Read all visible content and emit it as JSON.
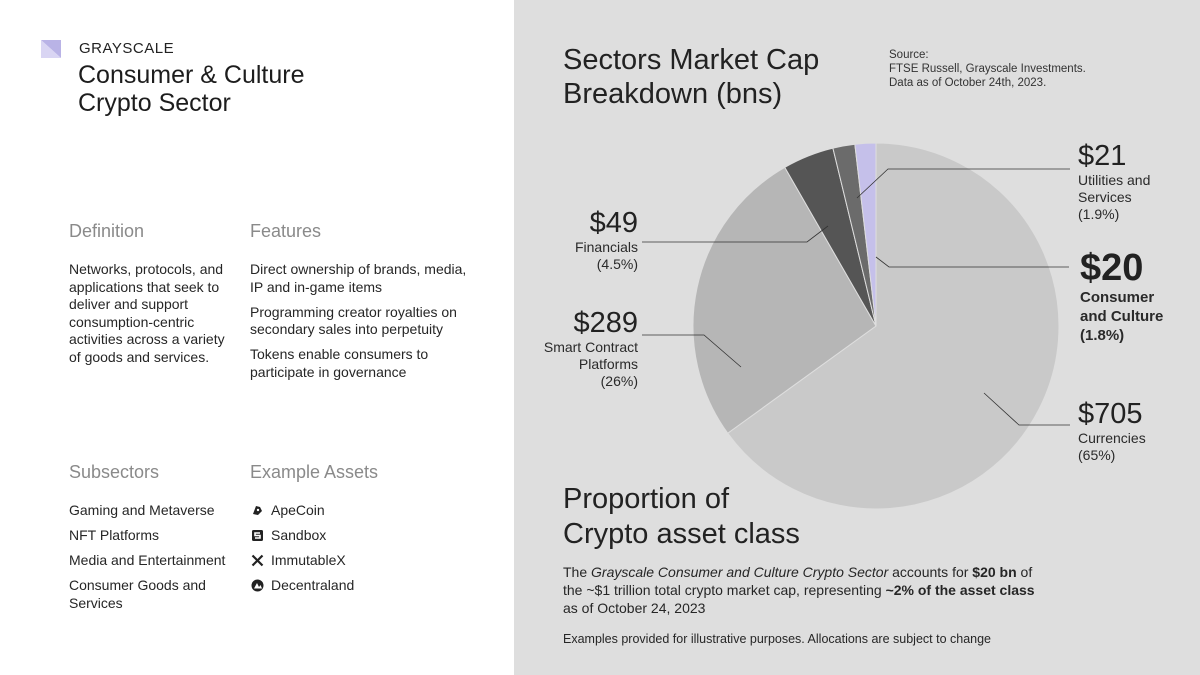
{
  "brand": {
    "name": "GRAYSCALE",
    "title_line1": "Consumer & Culture",
    "title_line2": "Crypto Sector",
    "accent_color": "#b9b3e6"
  },
  "definition": {
    "heading": "Definition",
    "text": "Networks, protocols, and applications that seek to deliver and support consumption-centric activities across a variety of goods and services."
  },
  "features": {
    "heading": "Features",
    "items": [
      "Direct ownership of brands, media, IP and in-game items",
      "Programming creator royalties on secondary sales into perpetuity",
      "Tokens enable consumers to participate in governance"
    ]
  },
  "subsectors": {
    "heading": "Subsectors",
    "items": [
      "Gaming and Metaverse",
      "NFT Platforms",
      "Media and Entertainment",
      "Consumer Goods and Services"
    ]
  },
  "example_assets": {
    "heading": "Example Assets",
    "items": [
      {
        "name": "ApeCoin",
        "icon": "apecoin-icon"
      },
      {
        "name": "Sandbox",
        "icon": "sandbox-icon"
      },
      {
        "name": "ImmutableX",
        "icon": "immutablex-icon"
      },
      {
        "name": "Decentraland",
        "icon": "decentraland-icon"
      }
    ]
  },
  "source": {
    "line1": "Source:",
    "line2": "FTSE Russell, Grayscale Investments.",
    "line3": "Data as of October 24th, 2023."
  },
  "chart_data": {
    "type": "pie",
    "title_line1": "Sectors Market Cap",
    "title_line2": "Breakdown (bns)",
    "slices": [
      {
        "label": "$705",
        "name": "Currencies",
        "pct_label": "(65%)",
        "value": 705,
        "percent": 65,
        "color": "#c9c9c9"
      },
      {
        "label": "$289",
        "name": "Smart Contract Platforms",
        "pct_label": "(26%)",
        "value": 289,
        "percent": 26,
        "color": "#b6b6b6"
      },
      {
        "label": "$49",
        "name": "Financials",
        "pct_label": "(4.5%)",
        "value": 49,
        "percent": 4.5,
        "color": "#555555"
      },
      {
        "label": "$21",
        "name": "Utilities and Services",
        "pct_label": "(1.9%)",
        "value": 21,
        "percent": 1.9,
        "color": "#6b6b6b"
      },
      {
        "label": "$20",
        "name": "Consumer and Culture",
        "pct_label": "(1.8%)",
        "value": 20,
        "percent": 1.8,
        "color": "#c5c0ea"
      }
    ]
  },
  "labels": {
    "currencies": {
      "val": "$705",
      "name": "Currencies",
      "pct": "(65%)"
    },
    "smart": {
      "val": "$289",
      "name1": "Smart Contract",
      "name2": "Platforms",
      "pct": "(26%)"
    },
    "financials": {
      "val": "$49",
      "name": "Financials",
      "pct": "(4.5%)"
    },
    "utilities": {
      "val": "$21",
      "name1": "Utilities and",
      "name2": "Services",
      "pct": "(1.9%)"
    },
    "consumer": {
      "val": "$20",
      "name1": "Consumer",
      "name2": "and Culture",
      "pct": "(1.8%)"
    }
  },
  "proportion": {
    "title_line1": "Proportion of",
    "title_line2": "Crypto asset class",
    "p1": "The ",
    "p2": "Grayscale  Consumer and Culture Crypto Sector",
    "p3": " accounts for ",
    "p4": "$20 bn",
    "p5": " of the ~$1 trillion total crypto market cap, representing ",
    "p6": "~2% of the asset class",
    "p7": " as of October 24, 2023"
  },
  "disclaimer": "Examples provided for illustrative purposes. Allocations are subject to change"
}
